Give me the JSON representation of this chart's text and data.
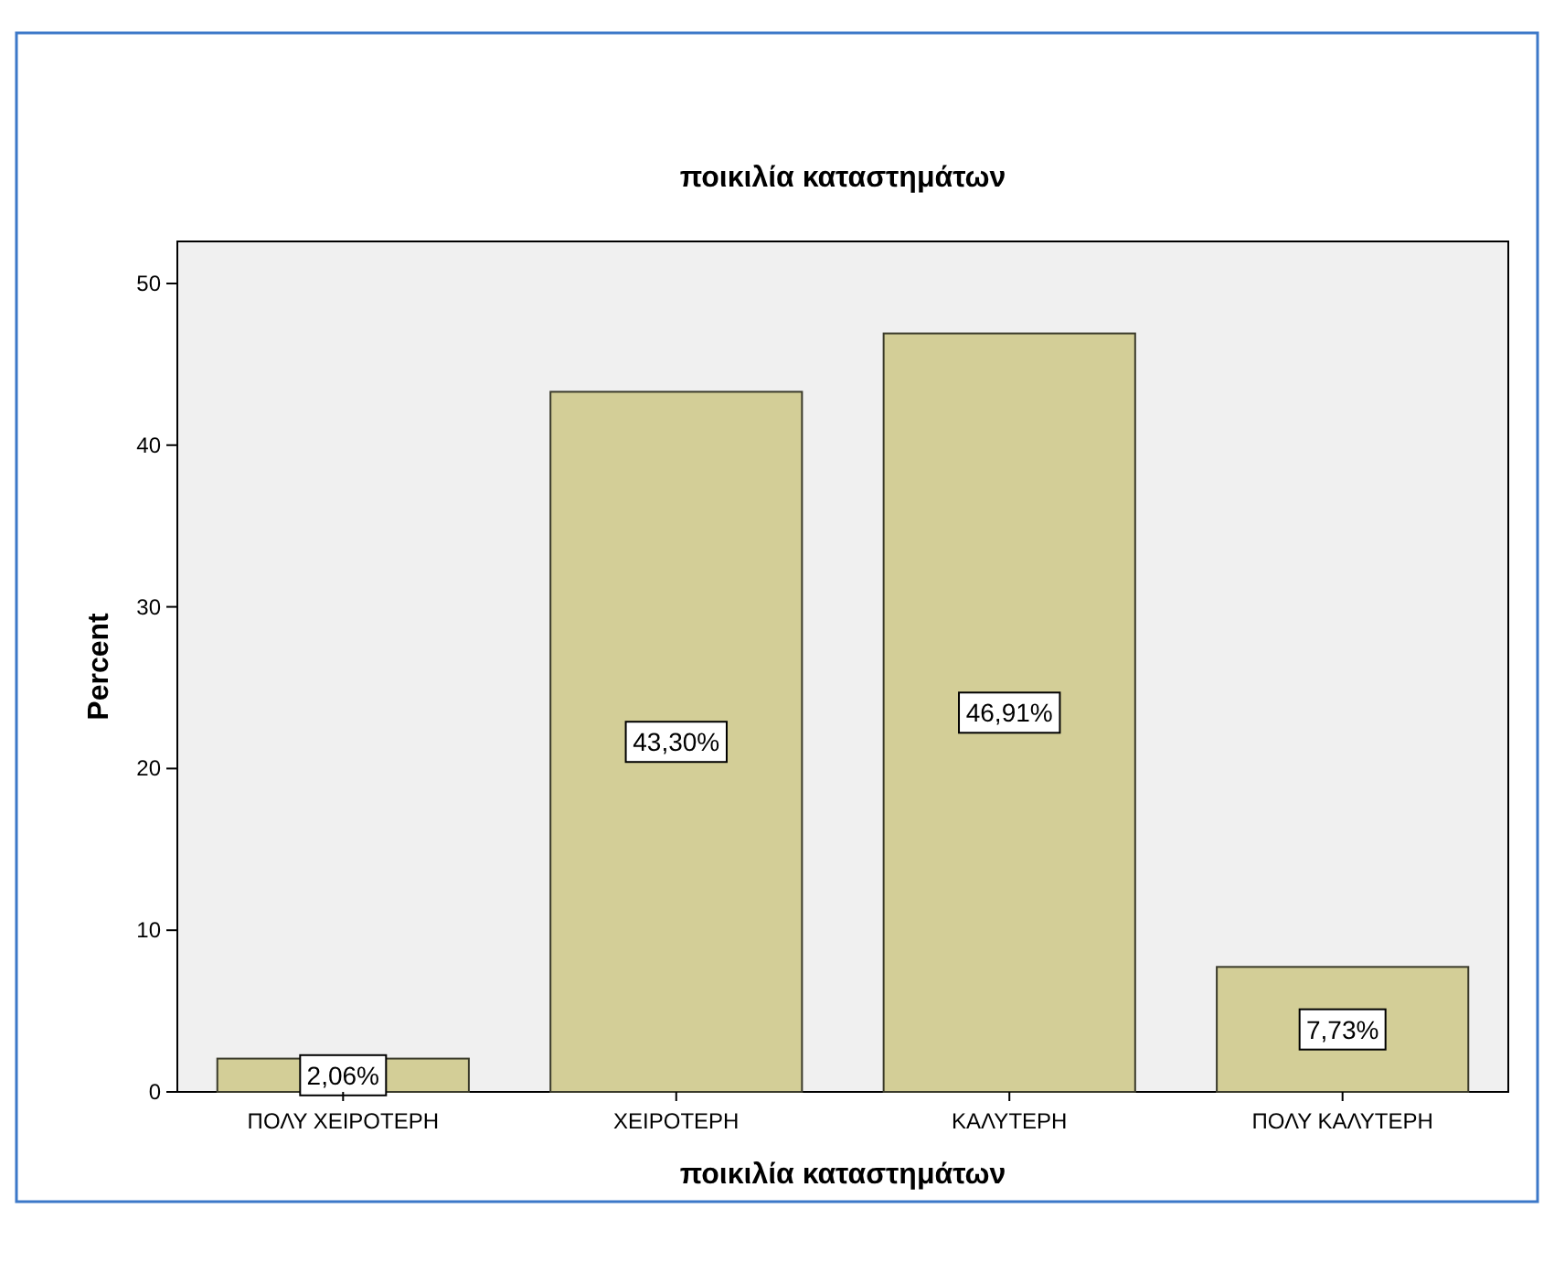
{
  "chart_data": {
    "type": "bar",
    "title": "ποικιλία καταστημάτων",
    "xlabel": "ποικιλία καταστημάτων",
    "ylabel": "Percent",
    "categories": [
      "ΠΟΛΥ ΧΕΙΡΟΤΕΡΗ",
      "ΧΕΙΡΟΤΕΡΗ",
      "ΚΑΛΥΤΕΡΗ",
      "ΠΟΛΥ ΚΑΛΥΤΕΡΗ"
    ],
    "values": [
      2.06,
      43.3,
      46.91,
      7.73
    ],
    "value_labels": [
      "2,06%",
      "43,30%",
      "46,91%",
      "7,73%"
    ],
    "color": "#d3ce97",
    "ylim": [
      0,
      52.6
    ],
    "yticks": [
      0,
      10,
      20,
      30,
      40,
      50
    ],
    "grid": false
  }
}
